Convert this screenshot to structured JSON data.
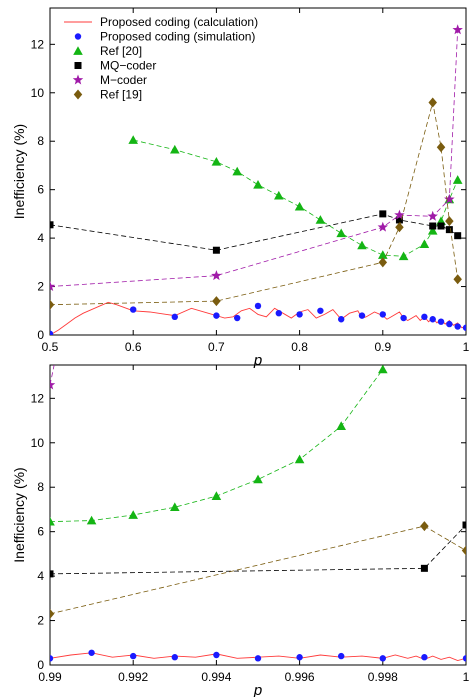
{
  "colors": {
    "calc": "#ff3b3b",
    "sim": "#1a1aff",
    "ref20": "#14b514",
    "mq": "#000000",
    "m": "#a01aa8",
    "ref19": "#7a5c0f"
  },
  "chart_data": [
    {
      "type": "line",
      "xlabel": "p",
      "ylabel": "Inefficiency (%)",
      "xlim": [
        0.5,
        1.0
      ],
      "ylim": [
        0,
        13.5
      ],
      "xticks": [
        "0.5",
        "0.6",
        "0.7",
        "0.8",
        "0.9",
        "1"
      ],
      "yticks": [
        "0",
        "2",
        "4",
        "6",
        "8",
        "10",
        "12"
      ],
      "legend": "top-left",
      "series": [
        {
          "name": "Proposed coding (calculation)",
          "style": "solid",
          "color_key": "calc",
          "x": [
            0.5,
            0.51,
            0.52,
            0.53,
            0.54,
            0.55,
            0.56,
            0.57,
            0.58,
            0.6,
            0.62,
            0.64,
            0.65,
            0.67,
            0.69,
            0.7,
            0.71,
            0.72,
            0.73,
            0.74,
            0.75,
            0.76,
            0.77,
            0.78,
            0.79,
            0.8,
            0.81,
            0.82,
            0.83,
            0.84,
            0.85,
            0.86,
            0.87,
            0.875,
            0.88,
            0.89,
            0.9,
            0.905,
            0.91,
            0.92,
            0.925,
            0.93,
            0.94,
            0.945,
            0.95,
            0.955,
            0.96,
            0.965,
            0.97,
            0.975,
            0.98,
            0.985,
            0.99,
            0.995,
            1.0
          ],
          "y": [
            0.0,
            0.2,
            0.45,
            0.7,
            0.9,
            1.05,
            1.2,
            1.35,
            1.25,
            1.0,
            0.95,
            0.85,
            0.8,
            1.1,
            0.9,
            0.8,
            0.7,
            0.75,
            1.0,
            1.1,
            0.85,
            0.75,
            1.1,
            0.9,
            0.7,
            0.95,
            1.05,
            0.7,
            0.85,
            1.05,
            0.65,
            0.9,
            1.0,
            0.7,
            0.75,
            0.95,
            0.8,
            0.65,
            0.75,
            0.95,
            0.7,
            0.6,
            0.8,
            0.6,
            0.75,
            0.55,
            0.7,
            0.5,
            0.65,
            0.45,
            0.6,
            0.4,
            0.5,
            0.3,
            0.35
          ]
        },
        {
          "name": "Proposed coding (simulation)",
          "style": "markers",
          "marker": "circle",
          "color_key": "sim",
          "x": [
            0.5,
            0.6,
            0.65,
            0.7,
            0.725,
            0.75,
            0.775,
            0.8,
            0.825,
            0.85,
            0.875,
            0.9,
            0.925,
            0.95,
            0.96,
            0.97,
            0.98,
            0.99,
            1.0
          ],
          "y": [
            0.05,
            1.05,
            0.75,
            0.8,
            0.7,
            1.2,
            0.9,
            0.85,
            1.0,
            0.65,
            0.8,
            0.85,
            0.7,
            0.75,
            0.65,
            0.55,
            0.45,
            0.35,
            0.3
          ]
        },
        {
          "name": "Ref [20]",
          "style": "dashed",
          "marker": "triangle",
          "color_key": "ref20",
          "x": [
            0.6,
            0.65,
            0.7,
            0.725,
            0.75,
            0.775,
            0.8,
            0.825,
            0.85,
            0.875,
            0.9,
            0.925,
            0.95,
            0.96,
            0.97,
            0.98,
            0.99
          ],
          "y": [
            8.05,
            7.65,
            7.15,
            6.75,
            6.2,
            5.75,
            5.3,
            4.75,
            4.2,
            3.7,
            3.3,
            3.25,
            3.75,
            4.3,
            4.7,
            5.6,
            6.4
          ]
        },
        {
          "name": "MQ−coder",
          "style": "dashed",
          "marker": "square",
          "color_key": "mq",
          "x": [
            0.5,
            0.7,
            0.9,
            0.92,
            0.96,
            0.97,
            0.98,
            0.99
          ],
          "y": [
            4.55,
            3.5,
            5.0,
            4.75,
            4.5,
            4.5,
            4.35,
            4.1
          ]
        },
        {
          "name": "M−coder",
          "style": "dashed",
          "marker": "star",
          "color_key": "m",
          "x": [
            0.5,
            0.7,
            0.9,
            0.92,
            0.96,
            0.98,
            0.99
          ],
          "y": [
            2.0,
            2.45,
            4.45,
            4.95,
            4.9,
            5.6,
            12.6
          ]
        },
        {
          "name": "Ref [19]",
          "style": "dashed",
          "marker": "diamond",
          "color_key": "ref19",
          "x": [
            0.5,
            0.7,
            0.9,
            0.92,
            0.96,
            0.97,
            0.98,
            0.99
          ],
          "y": [
            1.25,
            1.4,
            3.0,
            4.45,
            9.6,
            7.75,
            4.7,
            2.3
          ]
        }
      ]
    },
    {
      "type": "line",
      "xlabel": "p",
      "ylabel": "Inefficiency (%)",
      "xlim": [
        0.99,
        1.0
      ],
      "ylim": [
        0,
        13.5
      ],
      "xticks": [
        "0.99",
        "0.992",
        "0.994",
        "0.996",
        "0.998",
        "1"
      ],
      "yticks": [
        "0",
        "2",
        "4",
        "6",
        "8",
        "10",
        "12"
      ],
      "series": [
        {
          "name": "Proposed coding (calculation)",
          "style": "solid",
          "color_key": "calc",
          "x": [
            0.99,
            0.9905,
            0.991,
            0.9915,
            0.992,
            0.9925,
            0.993,
            0.9935,
            0.994,
            0.9945,
            0.995,
            0.9955,
            0.996,
            0.9965,
            0.997,
            0.9975,
            0.998,
            0.9983,
            0.9986,
            0.9988,
            0.999,
            0.9992,
            0.9994,
            0.9996,
            0.9998,
            1.0
          ],
          "y": [
            0.3,
            0.45,
            0.55,
            0.35,
            0.45,
            0.3,
            0.4,
            0.35,
            0.5,
            0.3,
            0.35,
            0.4,
            0.3,
            0.45,
            0.35,
            0.4,
            0.3,
            0.45,
            0.3,
            0.4,
            0.25,
            0.4,
            0.25,
            0.35,
            0.2,
            0.3
          ]
        },
        {
          "name": "Proposed coding (simulation)",
          "style": "markers",
          "marker": "circle",
          "color_key": "sim",
          "x": [
            0.99,
            0.991,
            0.992,
            0.993,
            0.994,
            0.995,
            0.996,
            0.997,
            0.998,
            0.999,
            1.0
          ],
          "y": [
            0.3,
            0.55,
            0.4,
            0.35,
            0.45,
            0.3,
            0.35,
            0.4,
            0.3,
            0.35,
            0.3
          ]
        },
        {
          "name": "Ref [20]",
          "style": "dashed",
          "marker": "triangle",
          "color_key": "ref20",
          "x": [
            0.99,
            0.991,
            0.992,
            0.993,
            0.994,
            0.995,
            0.996,
            0.997,
            0.998
          ],
          "y": [
            6.45,
            6.5,
            6.75,
            7.1,
            7.6,
            8.35,
            9.25,
            10.75,
            13.3
          ]
        },
        {
          "name": "MQ−coder",
          "style": "dashed",
          "marker": "square",
          "color_key": "mq",
          "x": [
            0.99,
            0.999,
            1.0
          ],
          "y": [
            4.1,
            4.35,
            6.3
          ]
        },
        {
          "name": "M−coder",
          "style": "dashed",
          "marker": "star",
          "color_key": "m",
          "x": [
            0.99,
            0.9901
          ],
          "y": [
            12.6,
            13.5
          ]
        },
        {
          "name": "Ref [19]",
          "style": "dashed",
          "marker": "diamond",
          "color_key": "ref19",
          "x": [
            0.99,
            0.999,
            1.0
          ],
          "y": [
            2.3,
            6.25,
            5.15
          ]
        }
      ]
    }
  ]
}
